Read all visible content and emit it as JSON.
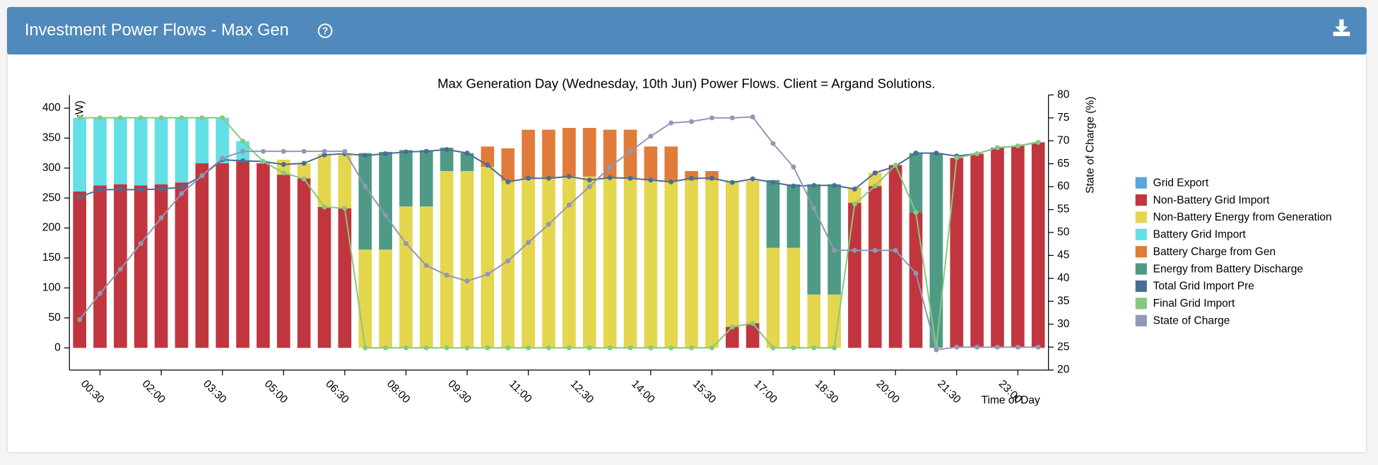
{
  "header": {
    "title": "Investment Power Flows - Max Gen"
  },
  "chart_data": {
    "type": "bar",
    "stacked": true,
    "title": "Max Generation Day (Wednesday, 10th Jun) Power Flows. Client = Argand Solutions.",
    "x_label": "Time of Day",
    "y_label": "Power (kW)",
    "y2_label": "State of Charge (%)",
    "categories": [
      null,
      "00:30",
      null,
      null,
      "02:00",
      null,
      null,
      "03:30",
      null,
      null,
      "05:00",
      null,
      null,
      "06:30",
      null,
      null,
      "08:00",
      null,
      null,
      "09:30",
      null,
      null,
      "11:00",
      null,
      null,
      "12:30",
      null,
      null,
      "14:00",
      null,
      null,
      "15:30",
      null,
      null,
      "17:00",
      null,
      null,
      "18:30",
      null,
      null,
      "20:00",
      null,
      null,
      "21:30",
      null,
      null,
      "23:00",
      null
    ],
    "ylim": [
      -37,
      422
    ],
    "yticks": [
      0,
      50,
      100,
      150,
      200,
      250,
      300,
      350,
      400
    ],
    "y2lim": [
      20,
      80
    ],
    "y2ticks": [
      20,
      25,
      30,
      35,
      40,
      45,
      50,
      55,
      60,
      65,
      70,
      75,
      80
    ],
    "series": [
      {
        "name": "Grid Export",
        "type": "bar",
        "color": "#5aa6de",
        "values": [
          0,
          0,
          0,
          0,
          0,
          0,
          0,
          0,
          0,
          0,
          0,
          0,
          0,
          0,
          0,
          0,
          0,
          0,
          0,
          0,
          0,
          0,
          0,
          0,
          0,
          0,
          0,
          0,
          0,
          0,
          0,
          0,
          0,
          0,
          0,
          0,
          0,
          0,
          0,
          0,
          0,
          0,
          0,
          0,
          0,
          0,
          0,
          0
        ]
      },
      {
        "name": "Non-Battery Grid Import",
        "type": "bar",
        "color": "#c1363e",
        "values": [
          261,
          271,
          273,
          271,
          273,
          276,
          308,
          308,
          311,
          308,
          289,
          283,
          235,
          233,
          0,
          0,
          0,
          0,
          0,
          0,
          0,
          0,
          0,
          0,
          0,
          0,
          0,
          0,
          0,
          0,
          0,
          0,
          35,
          41,
          0,
          0,
          0,
          0,
          242,
          270,
          305,
          226,
          0,
          317,
          324,
          334,
          337,
          343
        ]
      },
      {
        "name": "Non-Battery Energy from Generation",
        "type": "bar",
        "color": "#e4d64d",
        "values": [
          0,
          0,
          0,
          0,
          0,
          0,
          0,
          0,
          0,
          0,
          25,
          25,
          89,
          89,
          164,
          164,
          236,
          236,
          295,
          295,
          302,
          279,
          283,
          283,
          286,
          286,
          283,
          283,
          279,
          279,
          280,
          280,
          244,
          238,
          167,
          167,
          89,
          89,
          26,
          22,
          0,
          0,
          0,
          0,
          0,
          0,
          0,
          0
        ]
      },
      {
        "name": "Battery Grid Import",
        "type": "bar",
        "color": "#62e0e6",
        "values": [
          123,
          113,
          111,
          113,
          111,
          108,
          76,
          76,
          34,
          0,
          0,
          0,
          0,
          0,
          0,
          0,
          0,
          0,
          0,
          0,
          0,
          0,
          0,
          0,
          0,
          0,
          0,
          0,
          0,
          0,
          0,
          0,
          0,
          0,
          0,
          0,
          0,
          0,
          0,
          0,
          0,
          0,
          0,
          0,
          0,
          0,
          0,
          0
        ]
      },
      {
        "name": "Battery Charge from Gen",
        "type": "bar",
        "color": "#e07b39",
        "values": [
          0,
          0,
          0,
          0,
          0,
          0,
          0,
          0,
          0,
          0,
          0,
          0,
          0,
          0,
          0,
          0,
          0,
          0,
          0,
          0,
          34,
          54,
          81,
          81,
          81,
          81,
          81,
          81,
          57,
          57,
          15,
          15,
          0,
          0,
          0,
          0,
          0,
          0,
          0,
          0,
          0,
          0,
          0,
          0,
          0,
          0,
          0,
          0
        ]
      },
      {
        "name": "Energy from Battery Discharge",
        "type": "bar",
        "color": "#4f9a86",
        "values": [
          0,
          0,
          0,
          0,
          0,
          0,
          0,
          0,
          0,
          0,
          0,
          0,
          0,
          0,
          161,
          163,
          94,
          94,
          39,
          30,
          0,
          0,
          0,
          0,
          0,
          0,
          0,
          0,
          0,
          0,
          0,
          0,
          0,
          0,
          113,
          106,
          184,
          184,
          0,
          0,
          0,
          99,
          325,
          0,
          0,
          0,
          0,
          0
        ]
      },
      {
        "name": "Total Grid Import Pre",
        "type": "line",
        "color": "#4a6d93",
        "values": [
          252,
          264,
          264,
          264,
          265,
          268,
          287,
          314,
          312,
          311,
          306,
          308,
          322,
          324,
          321,
          324,
          327,
          328,
          331,
          325,
          305,
          277,
          283,
          283,
          286,
          280,
          284,
          283,
          280,
          277,
          283,
          283,
          276,
          282,
          276,
          270,
          271,
          271,
          265,
          292,
          303,
          325,
          325,
          320,
          324,
          334,
          337,
          343
        ]
      },
      {
        "name": "Final Grid Import",
        "type": "line",
        "color": "#86c97e",
        "values": [
          384,
          384,
          384,
          384,
          384,
          384,
          384,
          384,
          345,
          311,
          292,
          282,
          235,
          233,
          0,
          0,
          0,
          0,
          0,
          0,
          0,
          0,
          0,
          0,
          0,
          0,
          0,
          0,
          0,
          0,
          0,
          0,
          35,
          41,
          0,
          0,
          0,
          0,
          240,
          270,
          305,
          226,
          0,
          317,
          324,
          334,
          337,
          343
        ]
      },
      {
        "name": "State of Charge",
        "type": "line",
        "axis": "y2",
        "color": "#9197b6",
        "values": [
          31,
          36.7,
          42,
          47.6,
          53.2,
          58.5,
          62.4,
          66.2,
          67.7,
          67.7,
          67.7,
          67.7,
          67.7,
          67.7,
          60,
          53.7,
          47.6,
          42.8,
          40.7,
          39.4,
          40.9,
          43.8,
          47.8,
          51.8,
          56,
          60,
          64.3,
          67.7,
          71,
          73.9,
          74.2,
          75,
          75,
          75.2,
          69.4,
          64.3,
          55.3,
          46.1,
          46.1,
          46.1,
          46.1,
          41.1,
          24.4,
          25,
          25,
          25,
          25,
          25
        ]
      }
    ]
  }
}
